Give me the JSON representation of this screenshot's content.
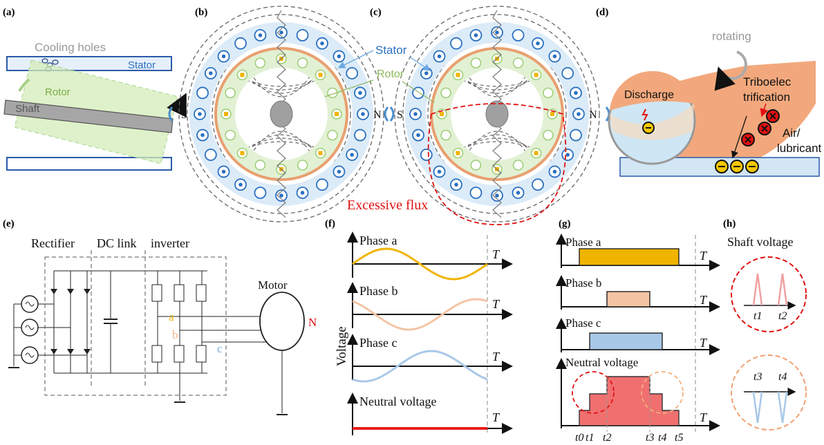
{
  "panels": {
    "a": "(a)",
    "b": "(b)",
    "c": "(c)",
    "d": "(d)",
    "e": "(e)",
    "f": "(f)",
    "g": "(g)",
    "h": "(h)"
  },
  "panel_a": {
    "cooling_holes": "Cooling holes",
    "stator": "Stator",
    "rotor": "Rotor",
    "shaft": "Shaft"
  },
  "panel_bc": {
    "stator": "Stator",
    "rotor": "Rotor",
    "s": "S",
    "n": "N",
    "excessive_flux": "Excessive flux"
  },
  "panel_d": {
    "rotating": "rotating",
    "discharge": "Discharge",
    "tribo1": "Triboelec",
    "tribo2": "trification",
    "air1": "Air/",
    "air2": "lubricant"
  },
  "panel_e": {
    "rectifier": "Rectifier",
    "dc_link": "DC link",
    "inverter": "inverter",
    "motor": "Motor",
    "a": "a",
    "b": "b",
    "c": "c",
    "n": "N"
  },
  "panel_f": {
    "ylabel": "Voltage",
    "phase_a": "Phase a",
    "phase_b": "Phase b",
    "phase_c": "Phase c",
    "neutral": "Neutral voltage",
    "t": "T"
  },
  "panel_g": {
    "phase_a": "Phase a",
    "phase_b": "Phase b",
    "phase_c": "Phase c",
    "neutral": "Neutral voltage",
    "t": "T",
    "ticks": [
      "t0",
      "t1",
      "t2",
      "t3",
      "t4",
      "t5"
    ]
  },
  "panel_h": {
    "title": "Shaft voltage",
    "ticks": [
      "t1",
      "t2",
      "t3",
      "t4"
    ]
  },
  "colors": {
    "phase_a": "#f0b400",
    "phase_b": "#f4c4a4",
    "phase_c": "#a8c8e8",
    "neutral": "#e81c1c",
    "rotor": "#e8a070",
    "stator_blue": "#2a70c0",
    "accent_red": "#e01010"
  }
}
